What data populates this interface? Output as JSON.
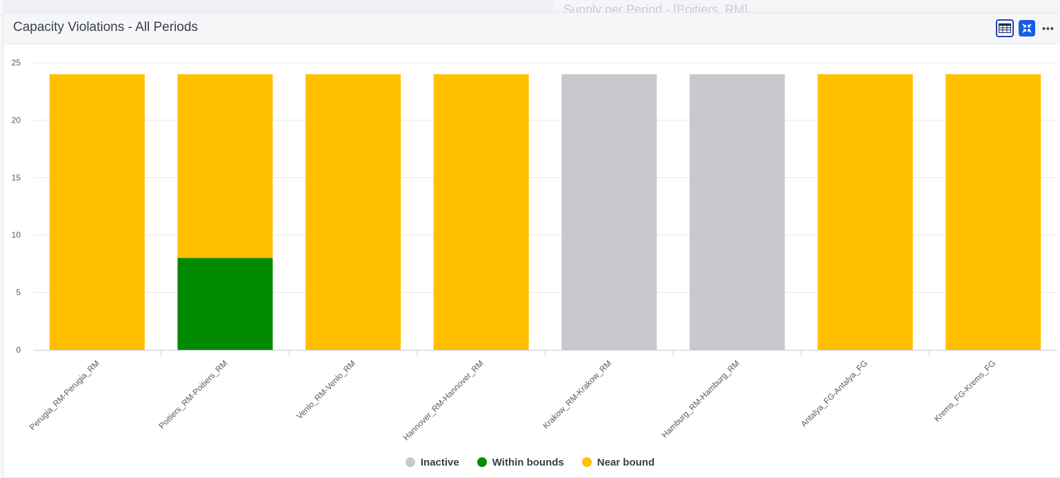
{
  "background_panel": {
    "title": "Supply per Period - [Poitiers_RM]"
  },
  "card": {
    "title": "Capacity Violations - All Periods"
  },
  "toolbar": {
    "table_icon": "table-view-icon",
    "collapse_icon": "collapse-icon",
    "more_label": "•••"
  },
  "colors": {
    "inactive": "#c8c9cd",
    "within": "#008a00",
    "near": "#ffc000",
    "grid": "#e6e8eb"
  },
  "chart_data": {
    "type": "bar",
    "stacked": true,
    "title": "Capacity Violations - All Periods",
    "categories": [
      "Perugia_RM-Perugia_RM",
      "Poitiers_RM-Poitiers_RM",
      "Venlo_RM-Venlo_RM",
      "Hannover_RM-Hannover_RM",
      "Krakow_RM-Krakow_RM",
      "Hamburg_RM-Hamburg_RM",
      "Antalya_FG-Antalya_FG",
      "Krems_FG-Krems_FG"
    ],
    "series": [
      {
        "name": "Inactive",
        "color": "#c8c9cd",
        "values": [
          0,
          0,
          0,
          0,
          24,
          24,
          0,
          0
        ]
      },
      {
        "name": "Within bounds",
        "color": "#008a00",
        "values": [
          0,
          8,
          0,
          0,
          0,
          0,
          0,
          0
        ]
      },
      {
        "name": "Near bound",
        "color": "#ffc000",
        "values": [
          24,
          16,
          24,
          24,
          0,
          0,
          24,
          24
        ]
      }
    ],
    "ylim": [
      0,
      25
    ],
    "yticks": [
      0,
      5,
      10,
      15,
      20,
      25
    ],
    "xlabel": "",
    "ylabel": "",
    "grid": true,
    "legend": "bottom-center"
  }
}
